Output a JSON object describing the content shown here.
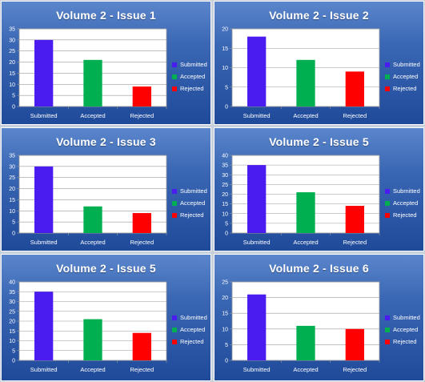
{
  "colors": {
    "submitted": "#4b1cf0",
    "accepted": "#00b050",
    "rejected": "#ff0000"
  },
  "chart_data": [
    {
      "type": "bar",
      "title": "Volume 2 - Issue 1",
      "categories": [
        "Submitted",
        "Accepted",
        "Rejected"
      ],
      "values": [
        30,
        21,
        9
      ],
      "ylim": [
        0,
        35
      ],
      "yticks": [
        0,
        5,
        10,
        15,
        20,
        25,
        30,
        35
      ],
      "legend": [
        "Submitted",
        "Accepted",
        "Rejected"
      ],
      "legend_position": "right",
      "grid": true
    },
    {
      "type": "bar",
      "title": "Volume 2 - Issue 2",
      "categories": [
        "Submitted",
        "Accepted",
        "Rejected"
      ],
      "values": [
        18,
        12,
        9
      ],
      "ylim": [
        0,
        20
      ],
      "yticks": [
        0,
        5,
        10,
        15,
        20
      ],
      "legend": [
        "Submitted",
        "Accepted",
        "Rejected"
      ],
      "legend_position": "right",
      "grid": true
    },
    {
      "type": "bar",
      "title": "Volume 2 - Issue 3",
      "categories": [
        "Submitted",
        "Accepted",
        "Rejected"
      ],
      "values": [
        30,
        12,
        9
      ],
      "ylim": [
        0,
        35
      ],
      "yticks": [
        0,
        5,
        10,
        15,
        20,
        25,
        30,
        35
      ],
      "legend": [
        "Submitted",
        "Accepted",
        "Rejected"
      ],
      "legend_position": "right",
      "grid": true
    },
    {
      "type": "bar",
      "title": "Volume 2 - Issue 5",
      "categories": [
        "Submitted",
        "Accepted",
        "Rejected"
      ],
      "values": [
        35,
        21,
        14
      ],
      "ylim": [
        0,
        40
      ],
      "yticks": [
        0,
        5,
        10,
        15,
        20,
        25,
        30,
        35,
        40
      ],
      "legend": [
        "Submitted",
        "Accepted",
        "Rejected"
      ],
      "legend_position": "right",
      "grid": true
    },
    {
      "type": "bar",
      "title": "Volume 2 - Issue 5",
      "categories": [
        "Submitted",
        "Accepted",
        "Rejected"
      ],
      "values": [
        35,
        21,
        14
      ],
      "ylim": [
        0,
        40
      ],
      "yticks": [
        0,
        5,
        10,
        15,
        20,
        25,
        30,
        35,
        40
      ],
      "legend": [
        "Submitted",
        "Accepted",
        "Rejected"
      ],
      "legend_position": "right",
      "grid": true
    },
    {
      "type": "bar",
      "title": "Volume 2 - Issue 6",
      "categories": [
        "Submitted",
        "Accepted",
        "Rejected"
      ],
      "values": [
        21,
        11,
        10
      ],
      "ylim": [
        0,
        25
      ],
      "yticks": [
        0,
        5,
        10,
        15,
        20,
        25
      ],
      "legend": [
        "Submitted",
        "Accepted",
        "Rejected"
      ],
      "legend_position": "right",
      "grid": true
    }
  ]
}
